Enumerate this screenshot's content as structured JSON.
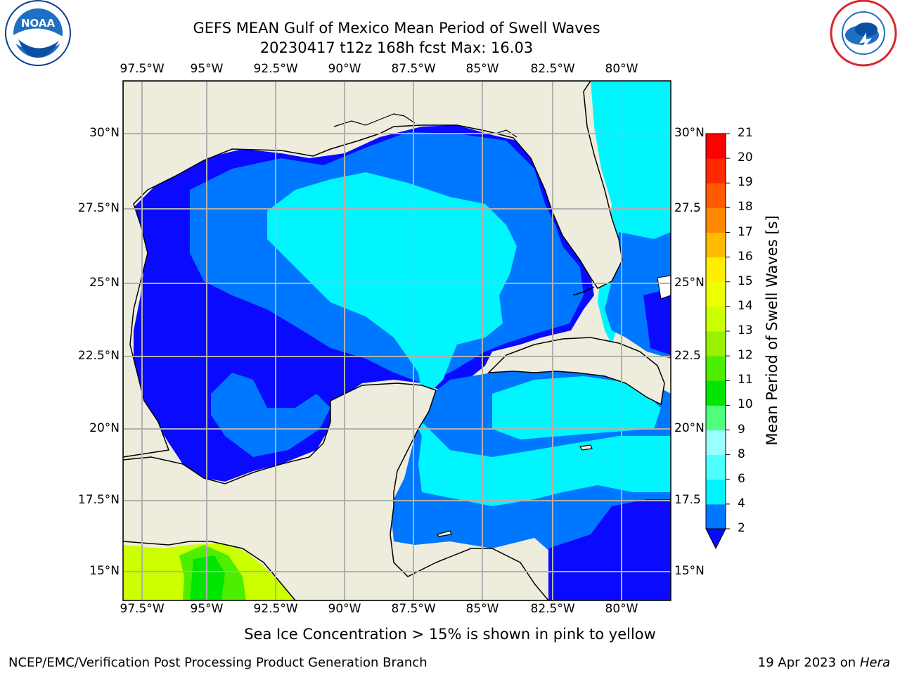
{
  "title": "GEFS MEAN Gulf of Mexico Mean Period of Swell Waves",
  "subtitle": "20230417 t12z 168h fcst   Max: 16.03",
  "longitude_labels": [
    "97.5°W",
    "95°W",
    "92.5°W",
    "90°W",
    "87.5°W",
    "85°W",
    "82.5°W",
    "80°W"
  ],
  "latitude_labels": [
    "30°N",
    "27.5°N",
    "25°N",
    "22.5°N",
    "20°N",
    "17.5°N",
    "15°N"
  ],
  "right_latitude_labels": [
    "30°N",
    "27.5",
    "25°N",
    "22.5",
    "20°N",
    "17.5",
    "15°N"
  ],
  "colorbar": {
    "label": "Mean Period of Swell Waves [s]",
    "ticks": [
      "2",
      "4",
      "6",
      "8",
      "9",
      "10",
      "11",
      "12",
      "13",
      "14",
      "15",
      "16",
      "17",
      "18",
      "19",
      "20",
      "21"
    ],
    "colors": [
      "#0a0aff",
      "#0077ff",
      "#00f5ff",
      "#4dffff",
      "#99ffff",
      "#4dff7a",
      "#00e600",
      "#4dee00",
      "#99f000",
      "#ccff00",
      "#eeff00",
      "#ffee00",
      "#ffbb00",
      "#ff8800",
      "#ff5a00",
      "#ff2800",
      "#ff0000"
    ]
  },
  "caption": "Sea Ice Concentration > 15% is shown in pink to yellow",
  "footer_left": "NCEP/EMC/Verification Post Processing Product Generation Branch",
  "footer_date": "19 Apr 2023 on",
  "footer_host": "Hera",
  "logos": {
    "left": "NOAA",
    "right": "NATIONAL WEATHER SERVICE"
  },
  "colors": {
    "land": "#eeecdc",
    "grid": "#b0b0b0"
  }
}
